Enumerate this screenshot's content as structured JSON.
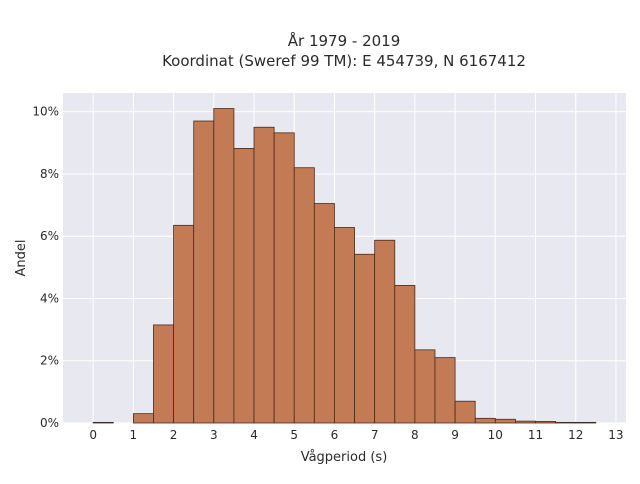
{
  "chart_data": {
    "type": "bar",
    "title": "År 1979 - 2019",
    "subtitle": "Koordinat (Sweref 99 TM): E 454739, N 6167412",
    "xlabel": "Vågperiod (s)",
    "ylabel": "Andel",
    "xlim": [
      -0.75,
      13.25
    ],
    "ylim": [
      0,
      10.6
    ],
    "bin_width": 0.5,
    "x_ticks": [
      0,
      1,
      2,
      3,
      4,
      5,
      6,
      7,
      8,
      9,
      10,
      11,
      12,
      13
    ],
    "x_tick_labels": [
      "0",
      "1",
      "2",
      "3",
      "4",
      "5",
      "6",
      "7",
      "8",
      "9",
      "10",
      "11",
      "12",
      "13"
    ],
    "y_ticks": [
      0,
      2,
      4,
      6,
      8,
      10
    ],
    "y_tick_labels": [
      "0%",
      "2%",
      "4%",
      "6%",
      "8%",
      "10%"
    ],
    "grid": true,
    "bins": [
      {
        "start": 0.0,
        "value": 0.02
      },
      {
        "start": 0.5,
        "value": 0.0
      },
      {
        "start": 1.0,
        "value": 0.3
      },
      {
        "start": 1.5,
        "value": 3.15
      },
      {
        "start": 2.0,
        "value": 6.35
      },
      {
        "start": 2.5,
        "value": 9.7
      },
      {
        "start": 3.0,
        "value": 10.1
      },
      {
        "start": 3.5,
        "value": 8.82
      },
      {
        "start": 4.0,
        "value": 9.5
      },
      {
        "start": 4.5,
        "value": 9.32
      },
      {
        "start": 5.0,
        "value": 8.2
      },
      {
        "start": 5.5,
        "value": 7.05
      },
      {
        "start": 6.0,
        "value": 6.28
      },
      {
        "start": 6.5,
        "value": 5.42
      },
      {
        "start": 7.0,
        "value": 5.87
      },
      {
        "start": 7.5,
        "value": 4.42
      },
      {
        "start": 8.0,
        "value": 2.35
      },
      {
        "start": 8.5,
        "value": 2.1
      },
      {
        "start": 9.0,
        "value": 0.7
      },
      {
        "start": 9.5,
        "value": 0.15
      },
      {
        "start": 10.0,
        "value": 0.12
      },
      {
        "start": 10.5,
        "value": 0.06
      },
      {
        "start": 11.0,
        "value": 0.05
      },
      {
        "start": 11.5,
        "value": 0.02
      },
      {
        "start": 12.0,
        "value": 0.02
      }
    ]
  },
  "colors": {
    "bar_fill": "#C27B54",
    "bar_edge": "#4a2a1a",
    "plot_background": "#E8E8F1",
    "grid": "#ffffff"
  }
}
